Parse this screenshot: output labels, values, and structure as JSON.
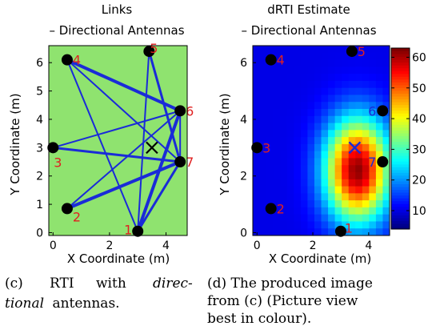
{
  "chart_data": [
    {
      "type": "scatter",
      "title_lines": [
        "Links",
        "– Directional Antennas"
      ],
      "xlabel": "X Coordinate (m)",
      "ylabel": "Y Coordinate (m)",
      "xlim": [
        -0.15,
        4.75
      ],
      "ylim": [
        -0.1,
        6.6
      ],
      "xticks": [
        0,
        2,
        4
      ],
      "yticks": [
        0,
        1,
        2,
        3,
        4,
        5,
        6
      ],
      "background_color": "#8FE36F",
      "node_color": "#000000",
      "node_label_color": "#E02020",
      "link_color": "#1A2BD8",
      "target_marker_color": "#000000",
      "nodes": [
        {
          "id": "1",
          "x": 3.0,
          "y": 0.05
        },
        {
          "id": "2",
          "x": 0.5,
          "y": 0.85
        },
        {
          "id": "3",
          "x": 0.0,
          "y": 3.0
        },
        {
          "id": "4",
          "x": 0.5,
          "y": 6.1
        },
        {
          "id": "5",
          "x": 3.4,
          "y": 6.4
        },
        {
          "id": "6",
          "x": 4.5,
          "y": 4.3
        },
        {
          "id": "7",
          "x": 4.5,
          "y": 2.5
        }
      ],
      "links": [
        {
          "from": "4",
          "to": "1",
          "width": 2
        },
        {
          "from": "4",
          "to": "7",
          "width": 2
        },
        {
          "from": "4",
          "to": "6",
          "width": 4
        },
        {
          "from": "3",
          "to": "6",
          "width": 2
        },
        {
          "from": "3",
          "to": "7",
          "width": 3
        },
        {
          "from": "2",
          "to": "7",
          "width": 4
        },
        {
          "from": "2",
          "to": "6",
          "width": 2
        },
        {
          "from": "1",
          "to": "5",
          "width": 2
        },
        {
          "from": "1",
          "to": "6",
          "width": 4
        },
        {
          "from": "1",
          "to": "7",
          "width": 3
        },
        {
          "from": "5",
          "to": "7",
          "width": 3
        },
        {
          "from": "6",
          "to": "7",
          "width": 2
        }
      ],
      "target": {
        "x": 3.5,
        "y": 3.0
      }
    },
    {
      "type": "heatmap",
      "title_lines": [
        "dRTI Estimate",
        "– Directional Antennas"
      ],
      "xlabel": "X Coordinate (m)",
      "ylabel": "Y Coordinate (m)",
      "xlim": [
        -0.15,
        4.75
      ],
      "ylim": [
        -0.1,
        6.6
      ],
      "xticks": [
        0,
        2,
        4
      ],
      "yticks": [
        0,
        2,
        4,
        6
      ],
      "grid": {
        "nx": 20,
        "ny": 27
      },
      "value_range": [
        4,
        63
      ],
      "background_value": 10,
      "peak": {
        "x": 3.6,
        "y": 2.2,
        "value": 62,
        "sigma_x": 0.8,
        "sigma_y": 1.25
      },
      "colorbar": {
        "ticks": [
          10,
          20,
          30,
          40,
          50,
          60
        ]
      },
      "nodes": [
        {
          "id": "1",
          "x": 3.0,
          "y": 0.05,
          "label_color": "#E02020"
        },
        {
          "id": "2",
          "x": 0.5,
          "y": 0.85,
          "label_color": "#E02020"
        },
        {
          "id": "3",
          "x": 0.0,
          "y": 3.0,
          "label_color": "#E02020"
        },
        {
          "id": "4",
          "x": 0.5,
          "y": 6.1,
          "label_color": "#E02020"
        },
        {
          "id": "5",
          "x": 3.4,
          "y": 6.4,
          "label_color": "#E02020"
        },
        {
          "id": "6",
          "x": 4.5,
          "y": 4.3,
          "label_color": "#1A2BD8"
        },
        {
          "id": "7",
          "x": 4.5,
          "y": 2.5,
          "label_color": "#1A2BD8"
        }
      ],
      "target": {
        "x": 3.5,
        "y": 3.0,
        "color": "#1A2BD8"
      }
    }
  ],
  "captions": {
    "left": {
      "label": "(c)",
      "word1": "RTI",
      "word2": "with",
      "italic1": "direc-",
      "italic2": "tional",
      "rest2": "antennas."
    },
    "right": {
      "line1": "(d) The produced image",
      "line2": "from (c) (Picture view",
      "line3": "best in colour)."
    }
  }
}
